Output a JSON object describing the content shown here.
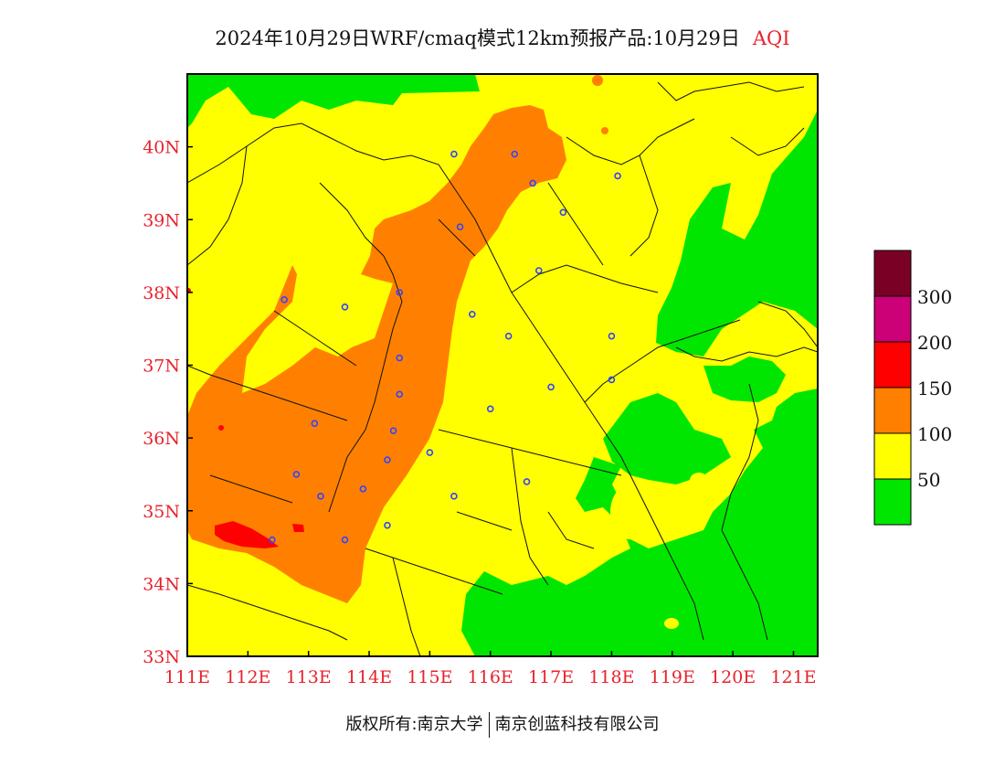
{
  "title": {
    "main": "2024年10月29日WRF/cmaq模式12km预报产品:10月29日",
    "variable": "AQI"
  },
  "axes": {
    "x_ticks": [
      "111E",
      "112E",
      "113E",
      "114E",
      "115E",
      "116E",
      "117E",
      "118E",
      "119E",
      "120E",
      "121E"
    ],
    "y_ticks": [
      "40N",
      "39N",
      "38N",
      "37N",
      "36N",
      "35N",
      "34N",
      "33N"
    ],
    "lon_range": [
      111,
      121.4
    ],
    "lat_range": [
      33,
      41
    ]
  },
  "legend": {
    "labels": [
      "300",
      "200",
      "150",
      "100",
      "50"
    ],
    "colors": [
      "#7a0026",
      "#cc0077",
      "#ff0000",
      "#ff8000",
      "#ffff00",
      "#00e600"
    ]
  },
  "footer": {
    "left": "版权所有:南京大学",
    "right": "南京创蓝科技有限公司"
  },
  "cities": [
    {
      "lon": 115.4,
      "lat": 39.9
    },
    {
      "lon": 116.4,
      "lat": 39.9
    },
    {
      "lon": 116.7,
      "lat": 39.5
    },
    {
      "lon": 117.2,
      "lat": 39.1
    },
    {
      "lon": 118.1,
      "lat": 39.6
    },
    {
      "lon": 115.5,
      "lat": 38.9
    },
    {
      "lon": 116.8,
      "lat": 38.3
    },
    {
      "lon": 114.5,
      "lat": 38.0
    },
    {
      "lon": 112.6,
      "lat": 37.9
    },
    {
      "lon": 113.6,
      "lat": 37.8
    },
    {
      "lon": 115.7,
      "lat": 37.7
    },
    {
      "lon": 116.3,
      "lat": 37.4
    },
    {
      "lon": 117.0,
      "lat": 36.7
    },
    {
      "lon": 118.0,
      "lat": 37.4
    },
    {
      "lon": 118.0,
      "lat": 36.8
    },
    {
      "lon": 114.5,
      "lat": 37.1
    },
    {
      "lon": 114.5,
      "lat": 36.6
    },
    {
      "lon": 116.0,
      "lat": 36.4
    },
    {
      "lon": 113.1,
      "lat": 36.2
    },
    {
      "lon": 114.4,
      "lat": 36.1
    },
    {
      "lon": 115.0,
      "lat": 35.8
    },
    {
      "lon": 114.3,
      "lat": 35.7
    },
    {
      "lon": 112.8,
      "lat": 35.5
    },
    {
      "lon": 113.2,
      "lat": 35.2
    },
    {
      "lon": 113.9,
      "lat": 35.3
    },
    {
      "lon": 115.4,
      "lat": 35.2
    },
    {
      "lon": 116.6,
      "lat": 35.4
    },
    {
      "lon": 114.3,
      "lat": 34.8
    },
    {
      "lon": 113.6,
      "lat": 34.6
    },
    {
      "lon": 112.4,
      "lat": 34.6
    }
  ]
}
